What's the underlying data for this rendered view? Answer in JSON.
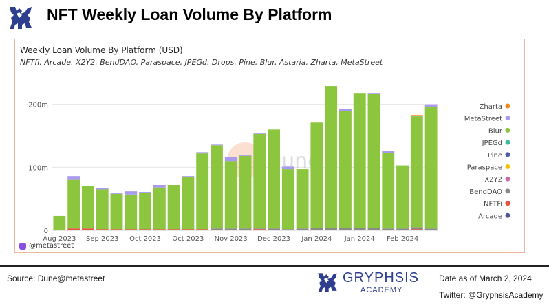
{
  "header": {
    "title": "NFT Weekly Loan Volume By Platform"
  },
  "chart_card": {
    "watermark": "Dune",
    "credit": "@metastreet"
  },
  "footer": {
    "source": "Source: Dune@metastreet",
    "brand_name": "GRYPHSIS",
    "brand_sub": "ACADEMY",
    "date_note": "Date as of March 2, 2024",
    "twitter": "Twitter: @GryphsisAcademy"
  },
  "colors": {
    "Zharta": "#f08a1c",
    "MetaStreet": "#a99af0",
    "Blur": "#8cc63f",
    "JPEGd": "#3fb8a0",
    "Pine": "#4a5fa8",
    "Paraspace": "#f2c10a",
    "X2Y2": "#c76bb0",
    "BendDAO": "#8a8a8a",
    "NFTFi": "#e5533f",
    "Arcade": "#4f5491",
    "accent_border": "#e9b9a4",
    "brand": "#2d3f8e"
  },
  "chart_data": {
    "type": "bar",
    "stacked": true,
    "title": "Weekly Loan Volume By Platform (USD)",
    "subtitle": "NFTfi, Arcade, X2Y2, BendDAO, Paraspace, JPEGd, Drops, Pine, Blur, Astaria, Zharta, MetaStreet",
    "xlabel": "",
    "ylabel": "",
    "ylim": [
      0,
      240000000
    ],
    "yticks": [
      0,
      100000000,
      200000000
    ],
    "ytick_labels": [
      "0",
      "100m",
      "200m"
    ],
    "xtick_labels": [
      "Aug 2023",
      "Sep 2023",
      "Oct 2023",
      "Oct 2023",
      "Nov 2023",
      "Dec 2023",
      "Jan 2024",
      "Jan 2024",
      "Feb 2024"
    ],
    "xtick_positions": [
      0.5,
      3.5,
      6.5,
      9.5,
      12.5,
      15.5,
      18.5,
      21.5,
      24.5
    ],
    "grid": true,
    "legend_position": "right",
    "legend": [
      "Zharta",
      "MetaStreet",
      "Blur",
      "JPEGd",
      "Pine",
      "Paraspace",
      "X2Y2",
      "BendDAO",
      "NFTFi",
      "Arcade"
    ],
    "bar_count": 27,
    "series": [
      {
        "name": "Arcade",
        "values": [
          0,
          1,
          1,
          1,
          1,
          1,
          1,
          1,
          1,
          1,
          1,
          1,
          1,
          1,
          1,
          1,
          1,
          1,
          1,
          1,
          1,
          1,
          1,
          1,
          1,
          1,
          1
        ]
      },
      {
        "name": "NFTFi",
        "values": [
          0,
          2,
          2,
          1,
          1,
          1,
          1,
          1,
          1,
          1,
          1,
          0,
          0,
          0,
          1,
          0,
          0,
          0,
          0,
          0,
          0,
          0,
          0,
          0,
          0,
          1,
          0
        ]
      },
      {
        "name": "BendDAO",
        "values": [
          0,
          0,
          0,
          0,
          0,
          0,
          0,
          0,
          0,
          0,
          0,
          2,
          2,
          2,
          1,
          2,
          1,
          2,
          3,
          3,
          3,
          3,
          3,
          2,
          2,
          3,
          2
        ]
      },
      {
        "name": "X2Y2",
        "values": [
          0,
          0,
          0,
          0,
          0,
          0,
          0,
          0,
          0,
          0,
          0,
          0,
          0,
          0,
          0,
          0,
          0,
          0,
          0,
          0,
          0,
          0,
          0,
          0,
          0,
          0,
          0
        ]
      },
      {
        "name": "Paraspace",
        "values": [
          0,
          0,
          0,
          0,
          0,
          0,
          0,
          0,
          0,
          0,
          0,
          0,
          0,
          0,
          0,
          0,
          0,
          0,
          0,
          0,
          0,
          0,
          0,
          0,
          0,
          0,
          0
        ]
      },
      {
        "name": "Pine",
        "values": [
          0,
          0,
          0,
          0,
          0,
          0,
          0,
          0,
          0,
          0,
          0,
          0,
          0,
          0,
          0,
          0,
          0,
          0,
          0,
          0,
          0,
          0,
          0,
          0,
          0,
          0,
          0
        ]
      },
      {
        "name": "JPEGd",
        "values": [
          0,
          0,
          0,
          0,
          0,
          0,
          0,
          0,
          0,
          0,
          0,
          0,
          0,
          0,
          0,
          0,
          0,
          0,
          0,
          0,
          0,
          0,
          0,
          0,
          0,
          0,
          0
        ]
      },
      {
        "name": "Blur",
        "values": [
          23,
          77,
          67,
          63,
          56,
          55,
          57,
          66,
          70,
          83,
          120,
          132,
          107,
          115,
          150,
          157,
          95,
          94,
          167,
          225,
          185,
          214,
          212,
          120,
          100,
          176,
          193
        ]
      },
      {
        "name": "MetaStreet",
        "values": [
          0,
          6,
          0,
          2,
          1,
          5,
          2,
          4,
          0,
          1,
          2,
          1,
          6,
          2,
          1,
          0,
          4,
          0,
          0,
          0,
          4,
          0,
          2,
          3,
          0,
          1,
          4
        ]
      },
      {
        "name": "Zharta",
        "values": [
          0,
          0,
          0,
          0,
          0,
          0,
          0,
          0,
          0,
          0,
          0,
          0,
          0,
          0,
          0,
          0,
          0,
          0,
          0,
          0,
          0,
          0,
          0,
          0,
          0,
          1,
          0
        ]
      }
    ],
    "units": "millions USD"
  }
}
